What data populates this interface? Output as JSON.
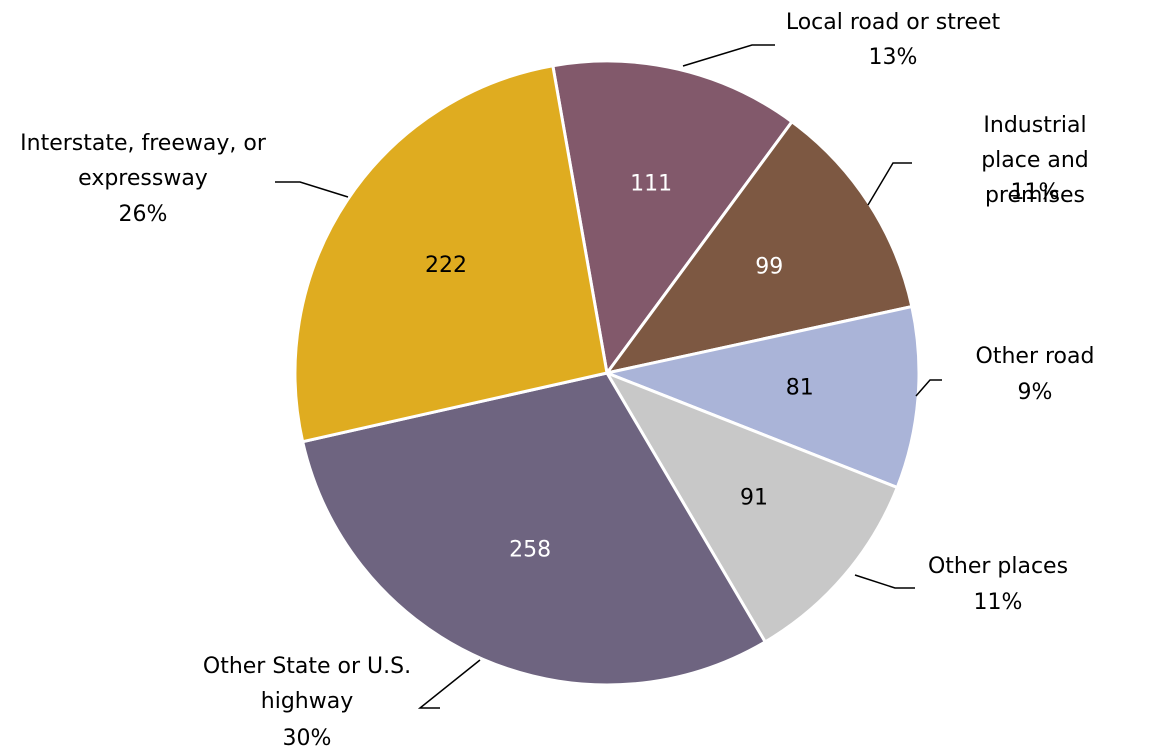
{
  "chart_data": {
    "type": "pie",
    "categories": [
      "Local road or street",
      "Industrial place and\npremises",
      "Other road",
      "Other places",
      "Other State or U.S.\nhighway",
      "Interstate, freeway, or\nexpressway"
    ],
    "values": [
      111,
      99,
      81,
      91,
      258,
      222
    ],
    "percent_labels": [
      "13%",
      "11%",
      "9%",
      "11%",
      "30%",
      "26%"
    ],
    "colors": [
      "#82596b",
      "#7d5842",
      "#aab4d8",
      "#c8c8c8",
      "#6e6480",
      "#dfac20"
    ]
  }
}
